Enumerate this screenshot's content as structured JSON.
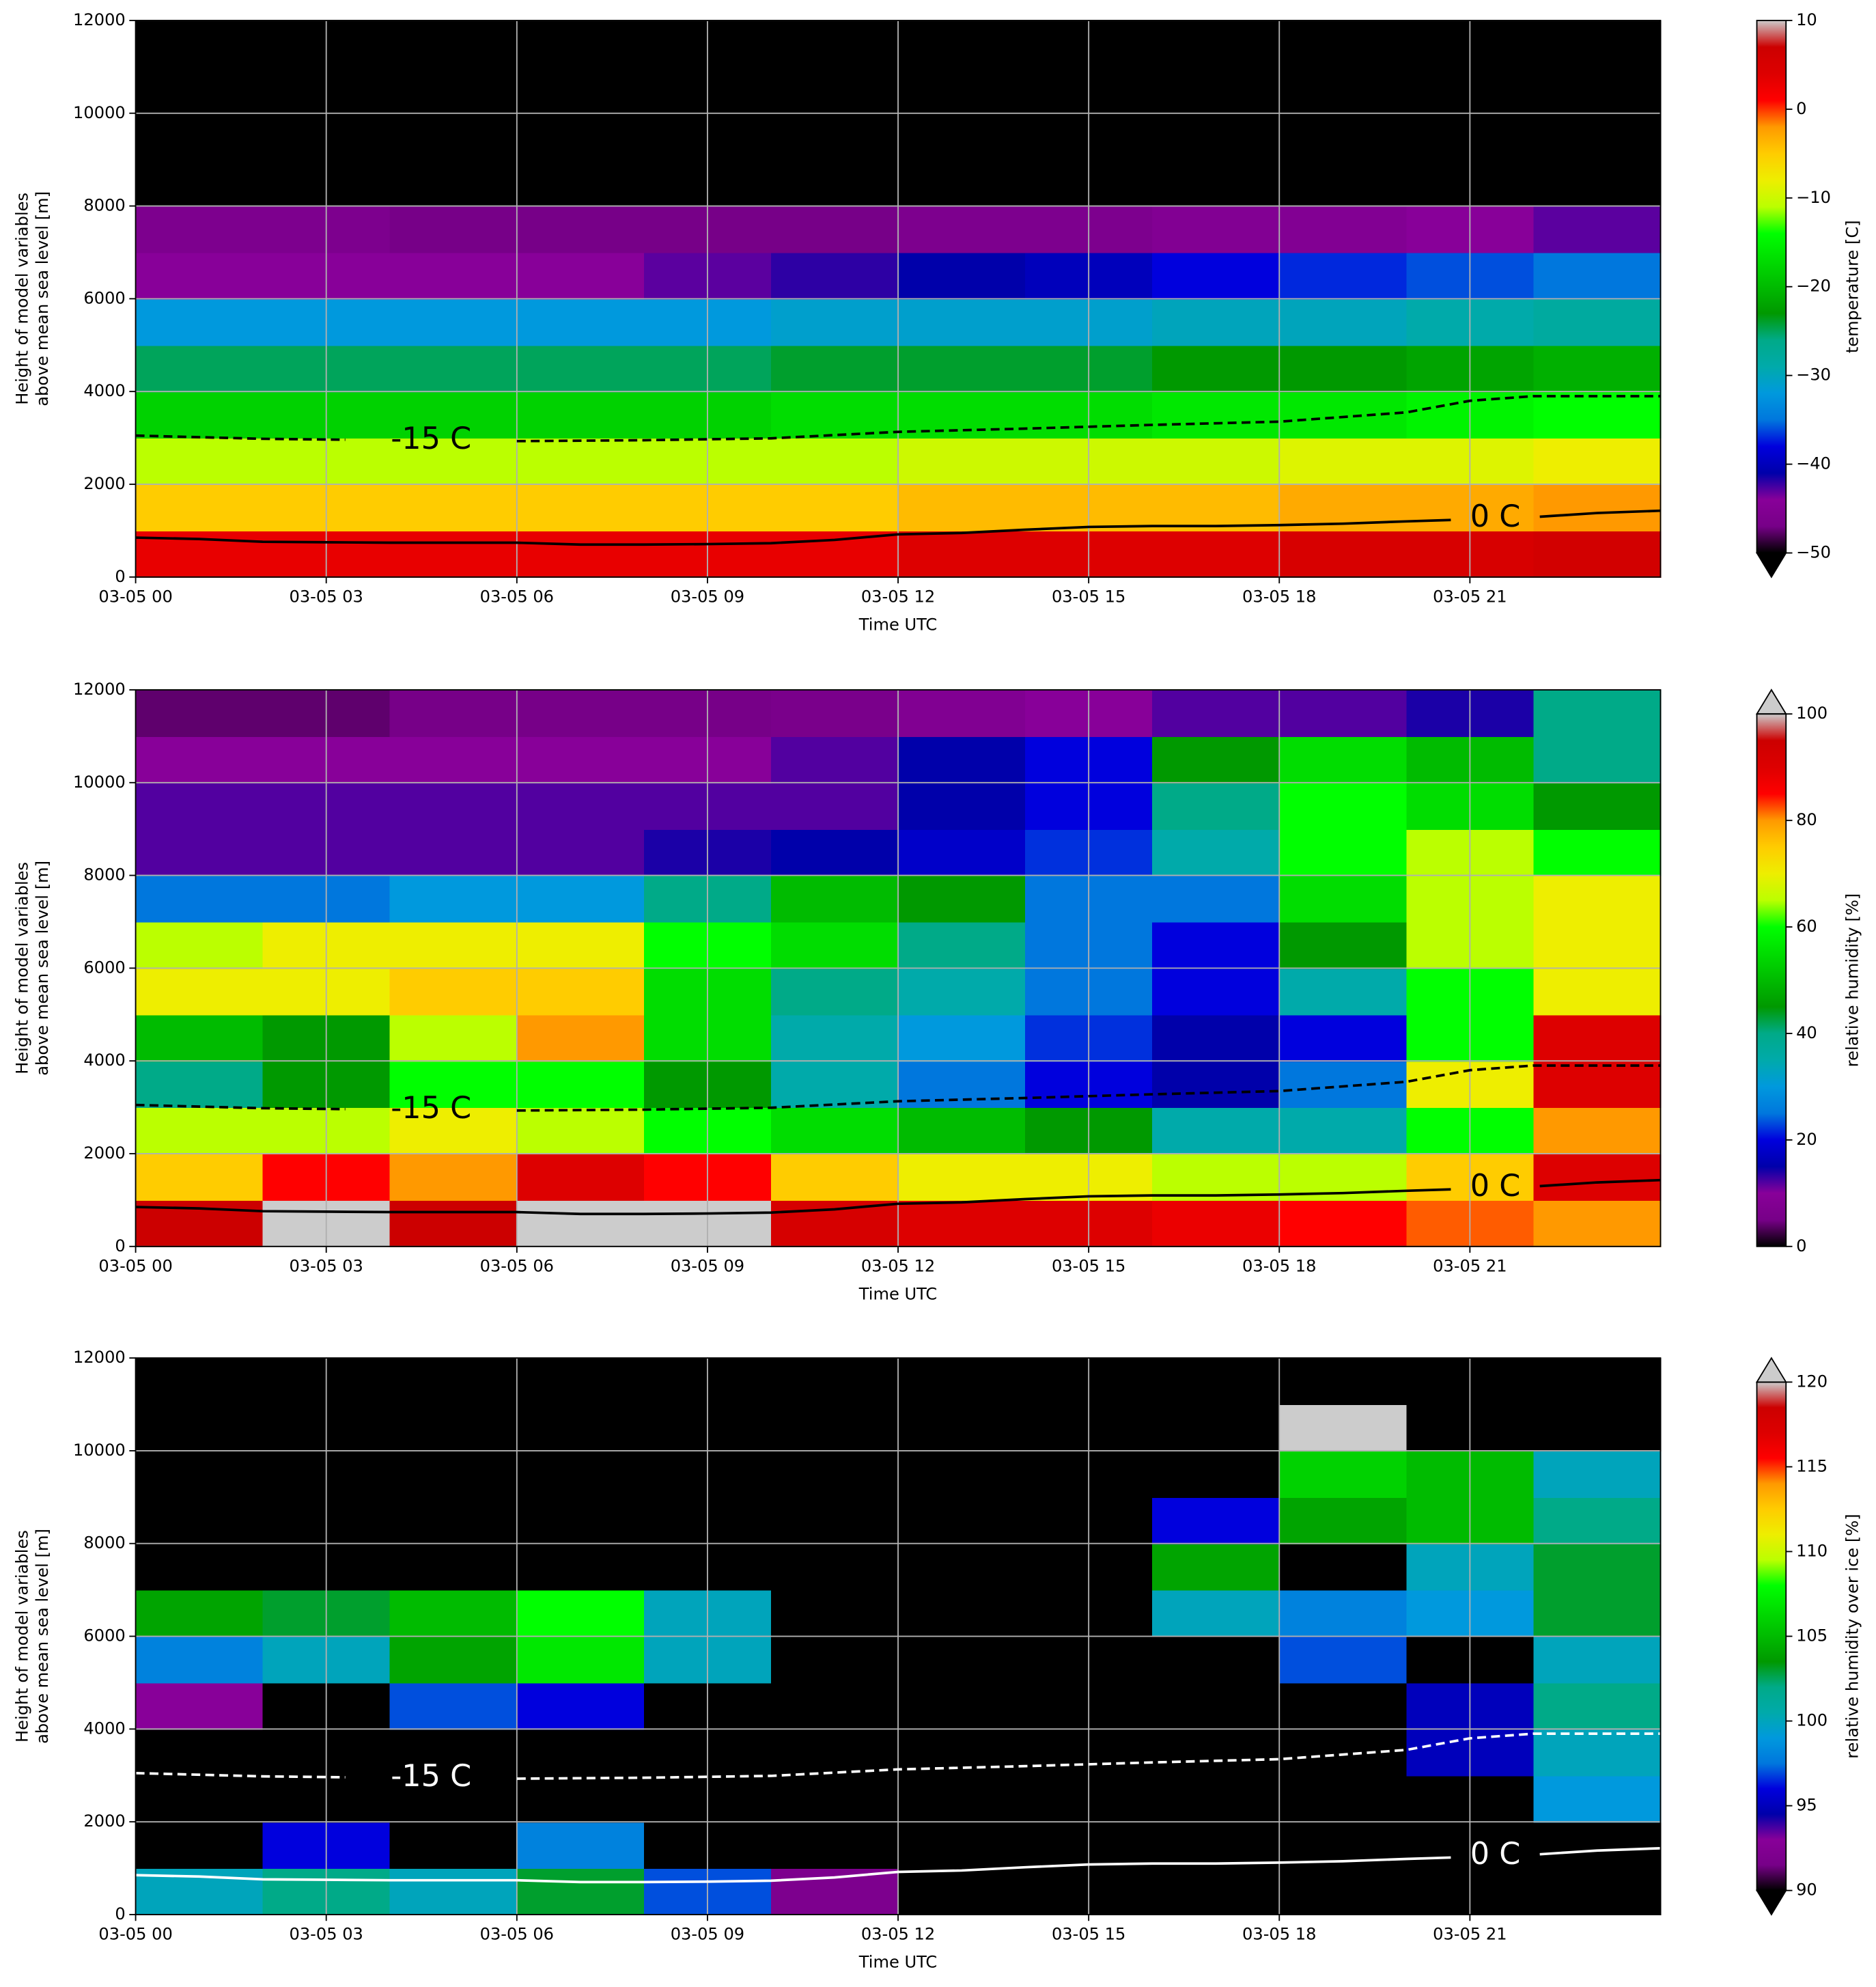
{
  "chart_data": [
    {
      "type": "heatmap",
      "colormap": "nipy_spectral",
      "extend": "min",
      "grid": true,
      "xlabel": "Time UTC",
      "ylabel": [
        "Height of model variables",
        "above mean sea level [m]"
      ],
      "colorbar_label": "temperature [C]",
      "xlim": [
        0,
        24
      ],
      "ylim": [
        0,
        12000
      ],
      "zlim": [
        -50,
        10
      ],
      "xticks": [
        {
          "value": 0,
          "label": "03-05 00"
        },
        {
          "value": 3,
          "label": "03-05 03"
        },
        {
          "value": 6,
          "label": "03-05 06"
        },
        {
          "value": 9,
          "label": "03-05 09"
        },
        {
          "value": 12,
          "label": "03-05 12"
        },
        {
          "value": 15,
          "label": "03-05 15"
        },
        {
          "value": 18,
          "label": "03-05 18"
        },
        {
          "value": 21,
          "label": "03-05 21"
        }
      ],
      "yticks": [
        0,
        2000,
        4000,
        6000,
        8000,
        10000,
        12000
      ],
      "zticks": [
        {
          "value": -50,
          "label": "−50"
        },
        {
          "value": -40,
          "label": "−40"
        },
        {
          "value": -30,
          "label": "−30"
        },
        {
          "value": -20,
          "label": "−20"
        },
        {
          "value": -10,
          "label": "−10"
        },
        0,
        10
      ],
      "x": [
        1,
        3,
        5,
        7,
        9,
        11,
        13,
        15,
        17,
        19,
        21,
        23
      ],
      "y": [
        500,
        1500,
        2500,
        3500,
        4500,
        5500,
        6500,
        7500,
        8500,
        9500,
        10500,
        11500
      ],
      "z": [
        [
          3,
          3,
          3,
          3,
          3,
          3,
          4,
          4,
          4,
          5,
          5,
          6
        ],
        [
          -5,
          -5,
          -5,
          -5,
          -5,
          -5,
          -4,
          -4,
          -4,
          -3,
          -3,
          -2
        ],
        [
          -11,
          -11,
          -11,
          -11,
          -11,
          -11,
          -10,
          -10,
          -10,
          -9,
          -9,
          -8
        ],
        [
          -18,
          -18,
          -18,
          -18,
          -18,
          -17,
          -17,
          -17,
          -16,
          -16,
          -15,
          -14
        ],
        [
          -25,
          -25,
          -25,
          -25,
          -25,
          -24,
          -24,
          -24,
          -23,
          -23,
          -22,
          -21
        ],
        [
          -32,
          -32,
          -32,
          -32,
          -32,
          -31,
          -31,
          -31,
          -30,
          -30,
          -29,
          -28
        ],
        [
          -44,
          -44,
          -44,
          -44,
          -43,
          -42,
          -41,
          -40,
          -38,
          -37,
          -36,
          -35
        ],
        [
          -46,
          -46,
          -47,
          -47,
          -47,
          -47,
          -46,
          -46,
          -45,
          -45,
          -44,
          -43
        ],
        [
          -60,
          -60,
          -60,
          -60,
          -60,
          -60,
          -60,
          -60,
          -60,
          -60,
          -60,
          -60
        ],
        [
          -60,
          -60,
          -60,
          -60,
          -60,
          -60,
          -60,
          -60,
          -60,
          -60,
          -60,
          -60
        ],
        [
          -60,
          -60,
          -60,
          -60,
          -60,
          -60,
          -60,
          -60,
          -60,
          -60,
          -60,
          -60
        ],
        [
          -60,
          -60,
          -60,
          -60,
          -60,
          -60,
          -60,
          -60,
          -60,
          -60,
          -60,
          -60
        ]
      ],
      "series": [
        {
          "name": "-15 C",
          "color": "#000000",
          "style": "dashed",
          "x": [
            0,
            2,
            3.3,
            4.6,
            6,
            8,
            10,
            12,
            14,
            16,
            18,
            20,
            21,
            22,
            24
          ],
          "values": [
            3050,
            2980,
            2960,
            null,
            2930,
            2950,
            2990,
            3130,
            3200,
            3280,
            3350,
            3550,
            3800,
            3900,
            3900
          ]
        },
        {
          "name": "0 C",
          "color": "#000000",
          "style": "solid",
          "x": [
            0,
            1,
            2,
            3,
            4,
            6,
            7,
            8,
            9,
            10,
            11,
            12,
            13,
            14,
            15,
            16,
            17,
            18,
            19,
            20,
            20.7,
            21.4,
            22.1,
            23,
            24
          ],
          "values": [
            850,
            820,
            760,
            750,
            740,
            740,
            700,
            700,
            710,
            730,
            800,
            920,
            950,
            1020,
            1080,
            1100,
            1100,
            1120,
            1150,
            1200,
            1230,
            null,
            1300,
            1380,
            1430
          ]
        }
      ]
    },
    {
      "type": "heatmap",
      "colormap": "nipy_spectral",
      "extend": "max",
      "grid": true,
      "xlabel": "Time UTC",
      "ylabel": [
        "Height of model variables",
        "above mean sea level [m]"
      ],
      "colorbar_label": "relative humidity [%]",
      "xlim": [
        0,
        24
      ],
      "ylim": [
        0,
        12000
      ],
      "zlim": [
        0,
        100
      ],
      "xticks": [
        {
          "value": 0,
          "label": "03-05 00"
        },
        {
          "value": 3,
          "label": "03-05 03"
        },
        {
          "value": 6,
          "label": "03-05 06"
        },
        {
          "value": 9,
          "label": "03-05 09"
        },
        {
          "value": 12,
          "label": "03-05 12"
        },
        {
          "value": 15,
          "label": "03-05 15"
        },
        {
          "value": 18,
          "label": "03-05 18"
        },
        {
          "value": 21,
          "label": "03-05 21"
        }
      ],
      "yticks": [
        0,
        2000,
        4000,
        6000,
        8000,
        10000,
        12000
      ],
      "zticks": [
        0,
        20,
        40,
        60,
        80,
        100
      ],
      "x": [
        1,
        3,
        5,
        7,
        9,
        11,
        13,
        15,
        17,
        19,
        21,
        23
      ],
      "y": [
        500,
        1500,
        2500,
        3500,
        4500,
        5500,
        6500,
        7500,
        8500,
        9500,
        10500,
        11500
      ],
      "z": [
        [
          95,
          105,
          95,
          105,
          100,
          92,
          90,
          90,
          88,
          85,
          82,
          80
        ],
        [
          75,
          85,
          80,
          90,
          85,
          75,
          70,
          70,
          65,
          65,
          75,
          90
        ],
        [
          65,
          65,
          70,
          65,
          60,
          55,
          50,
          45,
          35,
          35,
          60,
          80
        ],
        [
          40,
          45,
          60,
          60,
          45,
          35,
          25,
          20,
          15,
          25,
          70,
          90
        ],
        [
          50,
          45,
          65,
          80,
          55,
          35,
          30,
          22,
          15,
          20,
          60,
          90
        ],
        [
          70,
          70,
          75,
          75,
          55,
          40,
          35,
          25,
          20,
          35,
          60,
          70
        ],
        [
          65,
          70,
          70,
          70,
          60,
          55,
          40,
          25,
          20,
          45,
          65,
          70
        ],
        [
          25,
          25,
          30,
          30,
          40,
          50,
          45,
          25,
          25,
          55,
          65,
          70
        ],
        [
          12,
          12,
          12,
          12,
          14,
          15,
          18,
          22,
          35,
          60,
          65,
          60
        ],
        [
          12,
          12,
          12,
          12,
          12,
          12,
          15,
          20,
          40,
          60,
          55,
          45
        ],
        [
          10,
          10,
          10,
          10,
          10,
          12,
          15,
          20,
          45,
          55,
          50,
          40
        ],
        [
          4,
          4,
          5,
          5,
          5,
          6,
          8,
          10,
          12,
          12,
          14,
          40
        ]
      ],
      "series": [
        {
          "name": "-15 C",
          "color": "#000000",
          "style": "dashed",
          "x": [
            0,
            2,
            3.3,
            4.6,
            6,
            8,
            10,
            12,
            14,
            16,
            18,
            20,
            21,
            22,
            24
          ],
          "values": [
            3050,
            2980,
            2960,
            null,
            2930,
            2950,
            2990,
            3130,
            3200,
            3280,
            3350,
            3550,
            3800,
            3900,
            3900
          ]
        },
        {
          "name": "0 C",
          "color": "#000000",
          "style": "solid",
          "x": [
            0,
            1,
            2,
            3,
            4,
            6,
            7,
            8,
            9,
            10,
            11,
            12,
            13,
            14,
            15,
            16,
            17,
            18,
            19,
            20,
            20.7,
            21.4,
            22.1,
            23,
            24
          ],
          "values": [
            850,
            820,
            760,
            750,
            740,
            740,
            700,
            700,
            710,
            730,
            800,
            920,
            950,
            1020,
            1080,
            1100,
            1100,
            1120,
            1150,
            1200,
            1230,
            null,
            1300,
            1380,
            1430
          ]
        }
      ]
    },
    {
      "type": "heatmap",
      "colormap": "nipy_spectral",
      "extend": "both",
      "grid": true,
      "xlabel": "Time UTC",
      "ylabel": [
        "Height of model variables",
        "above mean sea level [m]"
      ],
      "colorbar_label": "relative humidity over ice [%]",
      "xlim": [
        0,
        24
      ],
      "ylim": [
        0,
        12000
      ],
      "zlim": [
        90,
        120
      ],
      "xticks": [
        {
          "value": 0,
          "label": "03-05 00"
        },
        {
          "value": 3,
          "label": "03-05 03"
        },
        {
          "value": 6,
          "label": "03-05 06"
        },
        {
          "value": 9,
          "label": "03-05 09"
        },
        {
          "value": 12,
          "label": "03-05 12"
        },
        {
          "value": 15,
          "label": "03-05 15"
        },
        {
          "value": 18,
          "label": "03-05 18"
        },
        {
          "value": 21,
          "label": "03-05 21"
        }
      ],
      "yticks": [
        0,
        2000,
        4000,
        6000,
        8000,
        10000,
        12000
      ],
      "zticks": [
        90,
        95,
        100,
        105,
        110,
        115,
        120
      ],
      "x": [
        1,
        3,
        5,
        7,
        9,
        11,
        13,
        15,
        17,
        19,
        21,
        23
      ],
      "y": [
        500,
        1500,
        2500,
        3500,
        4500,
        5500,
        6500,
        7500,
        8500,
        9500,
        10500,
        11500
      ],
      "z": [
        [
          100,
          102,
          100,
          103,
          97,
          92,
          80,
          80,
          80,
          80,
          80,
          80
        ],
        [
          80,
          96,
          80,
          98,
          80,
          80,
          80,
          80,
          80,
          80,
          80,
          80
        ],
        [
          80,
          80,
          80,
          80,
          80,
          80,
          80,
          80,
          80,
          80,
          80,
          99
        ],
        [
          80,
          80,
          80,
          80,
          80,
          80,
          80,
          80,
          80,
          80,
          95,
          100
        ],
        [
          93,
          80,
          97,
          96,
          80,
          80,
          80,
          80,
          80,
          80,
          95,
          102
        ],
        [
          98,
          100,
          104,
          107,
          100,
          80,
          80,
          80,
          80,
          97,
          80,
          100
        ],
        [
          104,
          103,
          105,
          108,
          100,
          80,
          80,
          80,
          100,
          98,
          99,
          103
        ],
        [
          80,
          80,
          80,
          80,
          80,
          80,
          80,
          80,
          104,
          80,
          100,
          103
        ],
        [
          80,
          80,
          80,
          80,
          80,
          80,
          80,
          80,
          96,
          104,
          105,
          102
        ],
        [
          80,
          80,
          80,
          80,
          80,
          80,
          80,
          80,
          80,
          106,
          105,
          100
        ],
        [
          80,
          80,
          80,
          80,
          80,
          80,
          80,
          80,
          80,
          121,
          80,
          80
        ],
        [
          80,
          80,
          80,
          80,
          80,
          80,
          80,
          80,
          80,
          80,
          80,
          80
        ]
      ],
      "series": [
        {
          "name": "-15 C",
          "color": "#ffffff",
          "style": "dashed",
          "x": [
            0,
            2,
            3.3,
            4.6,
            6,
            8,
            10,
            12,
            14,
            16,
            18,
            20,
            21,
            22,
            24
          ],
          "values": [
            3050,
            2980,
            2960,
            null,
            2930,
            2950,
            2990,
            3130,
            3200,
            3280,
            3350,
            3550,
            3800,
            3900,
            3900
          ]
        },
        {
          "name": "0 C",
          "color": "#ffffff",
          "style": "solid",
          "x": [
            0,
            1,
            2,
            3,
            4,
            6,
            7,
            8,
            9,
            10,
            11,
            12,
            13,
            14,
            15,
            16,
            17,
            18,
            19,
            20,
            20.7,
            21.4,
            22.1,
            23,
            24
          ],
          "values": [
            850,
            820,
            760,
            750,
            740,
            740,
            700,
            700,
            710,
            730,
            800,
            920,
            950,
            1020,
            1080,
            1100,
            1100,
            1120,
            1150,
            1200,
            1230,
            null,
            1300,
            1380,
            1430
          ]
        }
      ]
    }
  ]
}
